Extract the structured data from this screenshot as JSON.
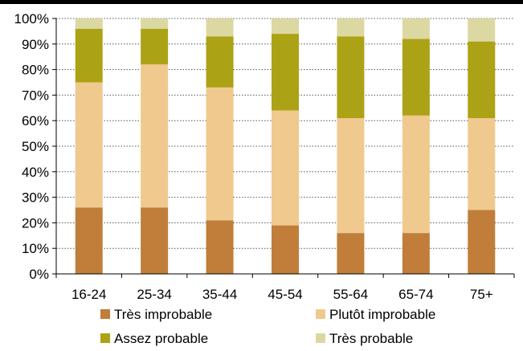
{
  "chart_data": {
    "type": "bar",
    "stacked": true,
    "categories": [
      "16-24",
      "25-34",
      "35-44",
      "45-54",
      "55-64",
      "65-74",
      "75+"
    ],
    "series": [
      {
        "name": "Très improbable",
        "color": "#C07E3A",
        "values": [
          26,
          26,
          21,
          19,
          16,
          16,
          25
        ]
      },
      {
        "name": "Plutôt improbable",
        "color": "#F0C98E",
        "values": [
          49,
          56,
          52,
          45,
          45,
          46,
          36
        ]
      },
      {
        "name": "Assez probable",
        "color": "#ACA216",
        "values": [
          21,
          14,
          20,
          30,
          32,
          30,
          30
        ]
      },
      {
        "name": "Très probable",
        "color": "#DCD8A2",
        "values": [
          4,
          4,
          7,
          6,
          7,
          8,
          9
        ]
      }
    ],
    "ylim": [
      0,
      100
    ],
    "yticks": [
      "0%",
      "10%",
      "20%",
      "30%",
      "40%",
      "50%",
      "60%",
      "70%",
      "80%",
      "90%",
      "100%"
    ],
    "grid": true,
    "legend_position": "bottom"
  }
}
